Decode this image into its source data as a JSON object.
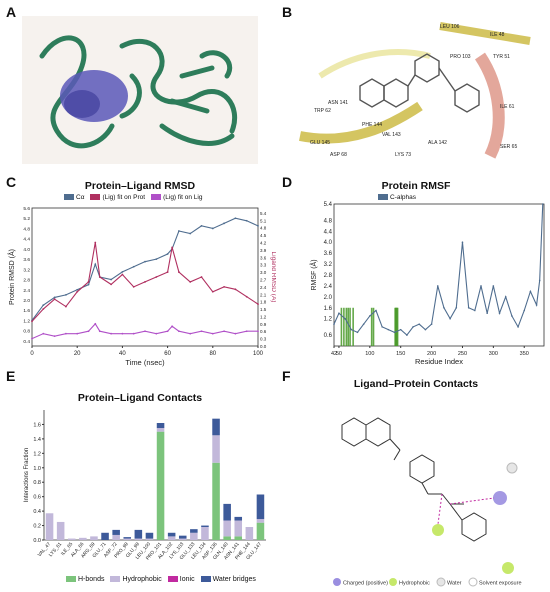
{
  "panels": {
    "a": "A",
    "b": "B",
    "c": "C",
    "d": "D",
    "e": "E",
    "f": "F"
  },
  "panel_b_residues": [
    "LEU 106",
    "ILE 48",
    "PRO 103",
    "TYR 51",
    "ASN 141",
    "PHE 144",
    "ALA 142",
    "ILE 61",
    "VAL 143",
    "SER 65",
    "TRP 62",
    "GLU 145",
    "LYS 73",
    "ASP 68"
  ],
  "panel_f": {
    "title": "Ligand–Protein Contacts",
    "legend": [
      "Charged (positive)",
      "Hydrophobic",
      "Water",
      "Solvent exposure"
    ]
  },
  "colors": {
    "protein_green": "#2e7d5b",
    "ligand_purple": "#5a58b8",
    "calpha": "#4f6d8f",
    "lig_fit_prot": "#b03060",
    "lig_fit_lig": "#b050c8",
    "hbonds": "#7cc47c",
    "hydrophobic": "#c2b8da",
    "ionic": "#c12aa0",
    "water": "#3d5a9a",
    "contact_green": "#4a9a2a"
  },
  "chart_data": [
    {
      "type": "line",
      "title": "Protein–Ligand RMSD",
      "xlabel": "Time (nsec)",
      "ylabel": "Protein RMSD (Å)",
      "y2label": "Ligand RMSD (Å)",
      "xlim": [
        0,
        100
      ],
      "ylim": [
        0.2,
        5.6
      ],
      "y2lim": [
        0,
        5.6
      ],
      "xticks": [
        "0",
        "20",
        "40",
        "60",
        "80",
        "100"
      ],
      "yticks": [
        "0.4",
        "0.8",
        "1.2",
        "1.6",
        "2.0",
        "2.4",
        "2.8",
        "3.2",
        "3.6",
        "4.0",
        "4.4",
        "4.8",
        "5.2",
        "5.6"
      ],
      "y2ticks": [
        "0.0",
        "0.3",
        "0.6",
        "0.9",
        "1.2",
        "1.5",
        "1.8",
        "2.1",
        "2.4",
        "2.7",
        "3.0",
        "3.3",
        "3.6",
        "3.9",
        "4.2",
        "4.5",
        "4.8",
        "5.1",
        "5.4"
      ],
      "series": [
        {
          "name": "Cα",
          "axis": "left",
          "x": [
            0,
            5,
            10,
            15,
            20,
            25,
            28,
            30,
            35,
            40,
            45,
            50,
            55,
            60,
            62,
            65,
            70,
            75,
            80,
            85,
            90,
            95,
            100
          ],
          "values": [
            1.2,
            1.8,
            2.1,
            2.2,
            2.4,
            2.6,
            3.4,
            2.9,
            2.8,
            3.1,
            3.3,
            3.5,
            3.6,
            3.8,
            4.0,
            4.7,
            4.6,
            4.9,
            4.8,
            5.0,
            5.2,
            5.1,
            4.9
          ]
        },
        {
          "name": "(Lig) fit on Prot",
          "axis": "right",
          "x": [
            0,
            5,
            10,
            15,
            20,
            25,
            28,
            30,
            35,
            40,
            45,
            50,
            55,
            60,
            62,
            65,
            70,
            75,
            80,
            85,
            90,
            95,
            100
          ],
          "values": [
            1.0,
            1.5,
            1.9,
            1.6,
            2.2,
            2.6,
            4.2,
            2.8,
            2.5,
            2.9,
            2.4,
            2.6,
            2.8,
            3.0,
            4.0,
            3.0,
            2.6,
            2.8,
            2.2,
            2.4,
            2.3,
            2.0,
            1.7
          ]
        },
        {
          "name": "(Lig) fit on Lig",
          "axis": "right",
          "x": [
            0,
            5,
            10,
            15,
            20,
            25,
            28,
            30,
            35,
            40,
            45,
            50,
            55,
            60,
            62,
            65,
            70,
            75,
            80,
            85,
            90,
            95,
            100
          ],
          "values": [
            0.3,
            0.5,
            0.4,
            0.5,
            0.5,
            0.6,
            0.9,
            0.6,
            0.5,
            0.5,
            0.5,
            0.6,
            0.5,
            0.6,
            0.8,
            0.6,
            0.5,
            0.6,
            0.5,
            0.6,
            0.5,
            0.6,
            0.6
          ]
        }
      ]
    },
    {
      "type": "line",
      "title": "Protein RMSF",
      "xlabel": "Residue Index",
      "ylabel": "RMSF (Å)",
      "xlim": [
        42,
        382
      ],
      "ylim": [
        0.2,
        5.4
      ],
      "xticks": [
        "42",
        "50",
        "100",
        "150",
        "200",
        "250",
        "300",
        "350"
      ],
      "yticks": [
        "0.6",
        "1.2",
        "1.6",
        "2.0",
        "2.4",
        "2.8",
        "3.2",
        "3.6",
        "4.0",
        "4.4",
        "4.8",
        "5.4"
      ],
      "series": [
        {
          "name": "C-alphas",
          "x": [
            42,
            50,
            60,
            70,
            80,
            90,
            100,
            110,
            120,
            130,
            140,
            150,
            160,
            170,
            180,
            190,
            200,
            210,
            220,
            230,
            240,
            250,
            260,
            270,
            280,
            290,
            300,
            310,
            320,
            330,
            340,
            350,
            360,
            370,
            375,
            380
          ],
          "values": [
            1.0,
            1.4,
            1.2,
            0.8,
            0.7,
            1.0,
            1.3,
            1.5,
            0.9,
            0.8,
            0.7,
            0.8,
            0.6,
            0.9,
            1.0,
            0.8,
            1.0,
            2.4,
            1.6,
            1.2,
            1.6,
            4.0,
            1.6,
            1.5,
            2.4,
            1.4,
            2.4,
            1.4,
            2.0,
            1.3,
            0.9,
            1.5,
            2.2,
            1.7,
            2.6,
            5.4
          ]
        }
      ],
      "contact_residues": [
        54,
        58,
        62,
        65,
        68,
        73,
        103,
        106,
        141,
        142,
        143,
        144,
        145
      ]
    },
    {
      "type": "bar",
      "stacked": true,
      "title": "Protein–Ligand Contacts",
      "ylabel": "Interactions Fraction",
      "ylim": [
        0,
        1.8
      ],
      "yticks": [
        "0.0",
        "0.2",
        "0.4",
        "0.6",
        "0.8",
        "1.0",
        "1.2",
        "1.4",
        "1.6"
      ],
      "categories": [
        "VAL_47",
        "LYS_61",
        "ILE_65",
        "ALA_66",
        "ARG_69",
        "GLU_71",
        "ASP_72",
        "PRO_99",
        "GLU_99",
        "LEU_100",
        "PRO_101",
        "ALA_102",
        "LYS_103",
        "GLU_133",
        "LEU_134",
        "ASP_136",
        "GLN_140",
        "ASN_141",
        "PHE_144",
        "GLU_147"
      ],
      "series": [
        {
          "name": "H-bonds",
          "values": [
            0,
            0,
            0,
            0,
            0,
            0,
            0,
            0,
            0,
            0,
            1.5,
            0,
            0,
            0,
            0,
            1.07,
            0.05,
            0.05,
            0,
            0.24
          ]
        },
        {
          "name": "Hydrophobic",
          "values": [
            0.37,
            0.25,
            0.02,
            0.03,
            0.05,
            0,
            0.07,
            0.02,
            0.02,
            0.02,
            0.05,
            0.05,
            0.02,
            0.1,
            0.18,
            0.38,
            0.22,
            0.22,
            0.18,
            0.05
          ]
        },
        {
          "name": "Ionic",
          "values": [
            0,
            0,
            0,
            0,
            0,
            0,
            0,
            0,
            0,
            0,
            0,
            0,
            0,
            0,
            0,
            0,
            0,
            0,
            0,
            0
          ]
        },
        {
          "name": "Water bridges",
          "values": [
            0,
            0,
            0,
            0,
            0,
            0.1,
            0.07,
            0.02,
            0.12,
            0.08,
            0.07,
            0.05,
            0.04,
            0.05,
            0.02,
            0.23,
            0.23,
            0.05,
            0,
            0.34
          ]
        }
      ]
    }
  ]
}
